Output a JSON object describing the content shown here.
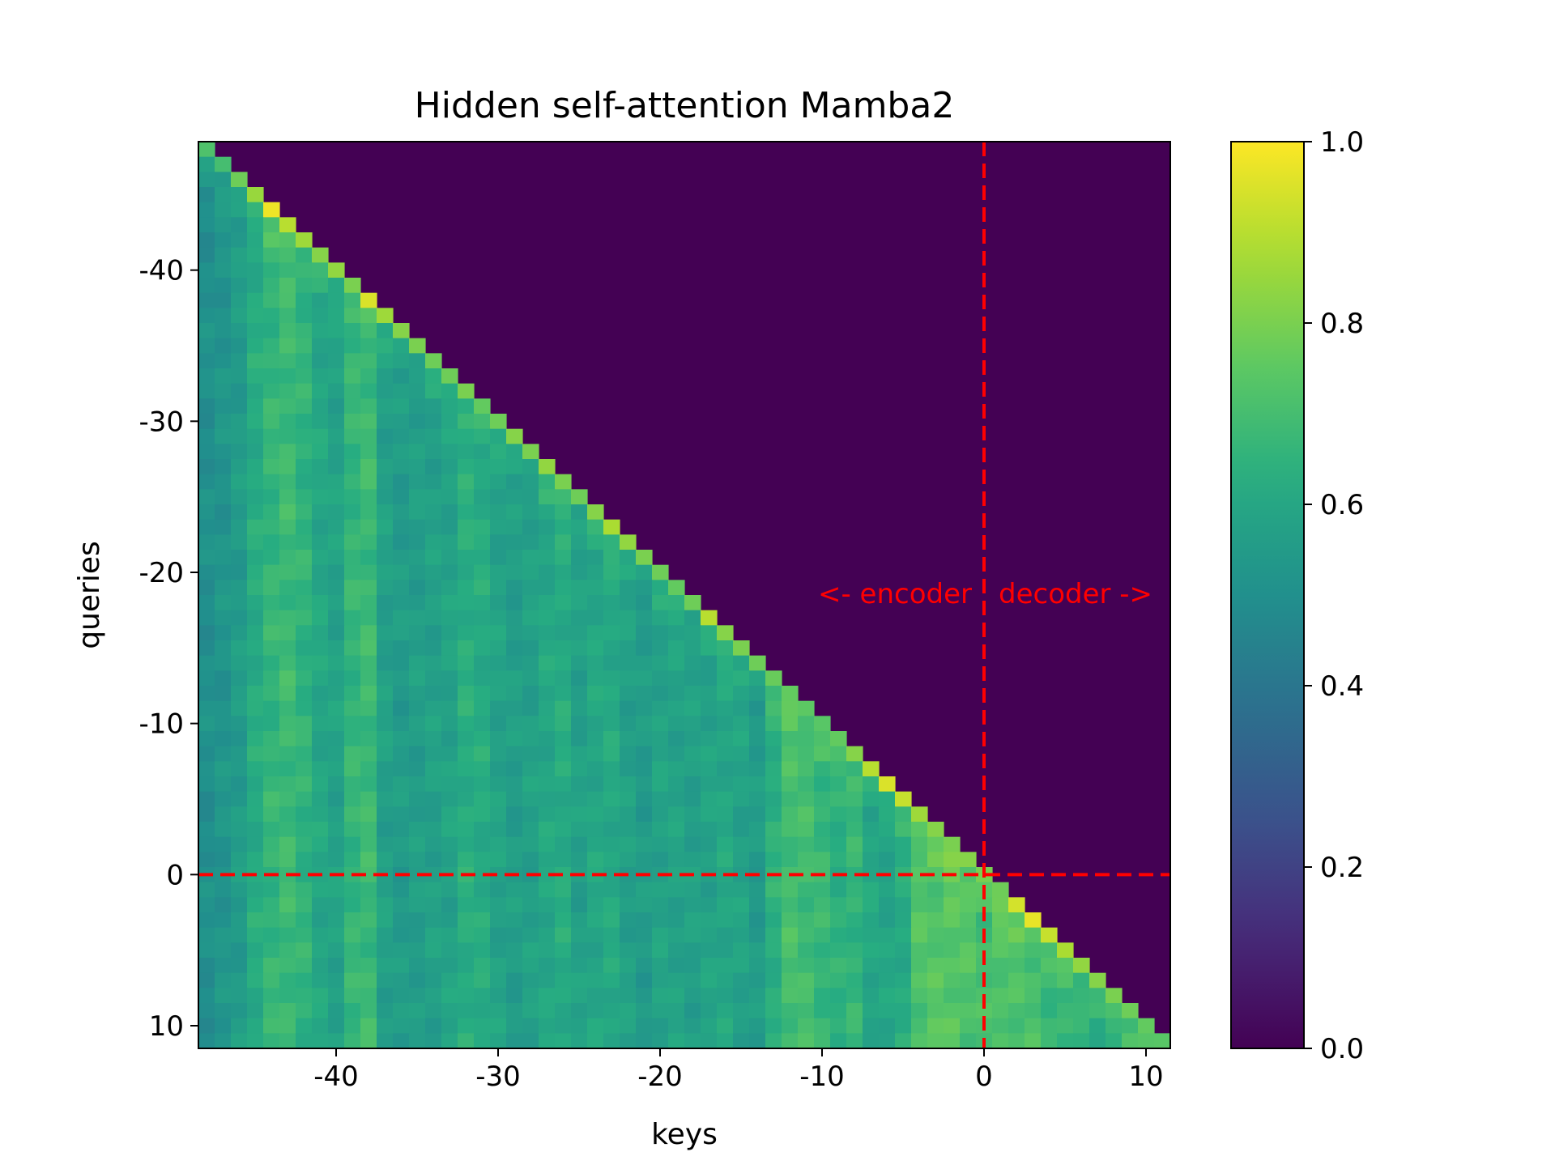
{
  "chart_data": {
    "type": "heatmap",
    "title": "Hidden self-attention Mamba2",
    "xlabel": "keys",
    "ylabel": "queries",
    "x_range": [
      -48,
      11
    ],
    "y_range": [
      -48,
      11
    ],
    "mask": "upper-triangle (key > query) is 0.0",
    "xticks": [
      -40,
      -30,
      -20,
      -10,
      0,
      10
    ],
    "yticks": [
      -40,
      -30,
      -20,
      -10,
      0,
      10
    ],
    "xtick_labels": [
      "-40",
      "-30",
      "-20",
      "-10",
      "0",
      "10"
    ],
    "ytick_labels": [
      "-40",
      "-30",
      "-20",
      "-10",
      "0",
      "10"
    ],
    "colorbar": {
      "colormap": "viridis",
      "range": [
        0.0,
        1.0
      ],
      "ticks": [
        0.0,
        0.2,
        0.4,
        0.6,
        0.8,
        1.0
      ],
      "tick_labels": [
        "0.0",
        "0.2",
        "0.4",
        "0.6",
        "0.8",
        "1.0"
      ]
    },
    "reference_lines": {
      "x": 0,
      "y": 0,
      "color": "#ff0000",
      "style": "dashed"
    },
    "annotations": [
      {
        "text": "<- encoder",
        "color": "#ff0000"
      },
      {
        "text": "decoder ->",
        "color": "#ff0000"
      }
    ],
    "column_means": [
      0.5,
      0.52,
      0.55,
      0.62,
      0.66,
      0.68,
      0.65,
      0.6,
      0.58,
      0.66,
      0.68,
      0.57,
      0.55,
      0.56,
      0.57,
      0.58,
      0.63,
      0.62,
      0.58,
      0.56,
      0.57,
      0.6,
      0.62,
      0.57,
      0.6,
      0.61,
      0.57,
      0.55,
      0.58,
      0.58,
      0.57,
      0.58,
      0.6,
      0.58,
      0.55,
      0.64,
      0.7,
      0.69,
      0.67,
      0.64,
      0.66,
      0.6,
      0.59,
      0.62,
      0.72,
      0.73,
      0.74,
      0.72,
      0.7,
      0.73,
      0.71,
      0.7,
      0.68,
      0.66,
      0.65,
      0.64,
      0.64,
      0.66,
      0.69,
      0.72
    ],
    "diagonal_values": [
      0.72,
      0.7,
      0.78,
      0.85,
      0.98,
      0.9,
      0.86,
      0.82,
      0.84,
      0.8,
      0.95,
      0.86,
      0.82,
      0.8,
      0.78,
      0.78,
      0.8,
      0.76,
      0.78,
      0.82,
      0.8,
      0.84,
      0.8,
      0.78,
      0.82,
      0.88,
      0.84,
      0.8,
      0.78,
      0.76,
      0.78,
      0.9,
      0.82,
      0.8,
      0.78,
      0.77,
      0.76,
      0.75,
      0.74,
      0.76,
      0.82,
      0.9,
      0.95,
      0.92,
      0.86,
      0.82,
      0.8,
      0.82,
      0.8,
      0.78,
      0.94,
      0.97,
      0.92,
      0.88,
      0.84,
      0.82,
      0.8,
      0.78,
      0.76,
      0.74
    ]
  }
}
